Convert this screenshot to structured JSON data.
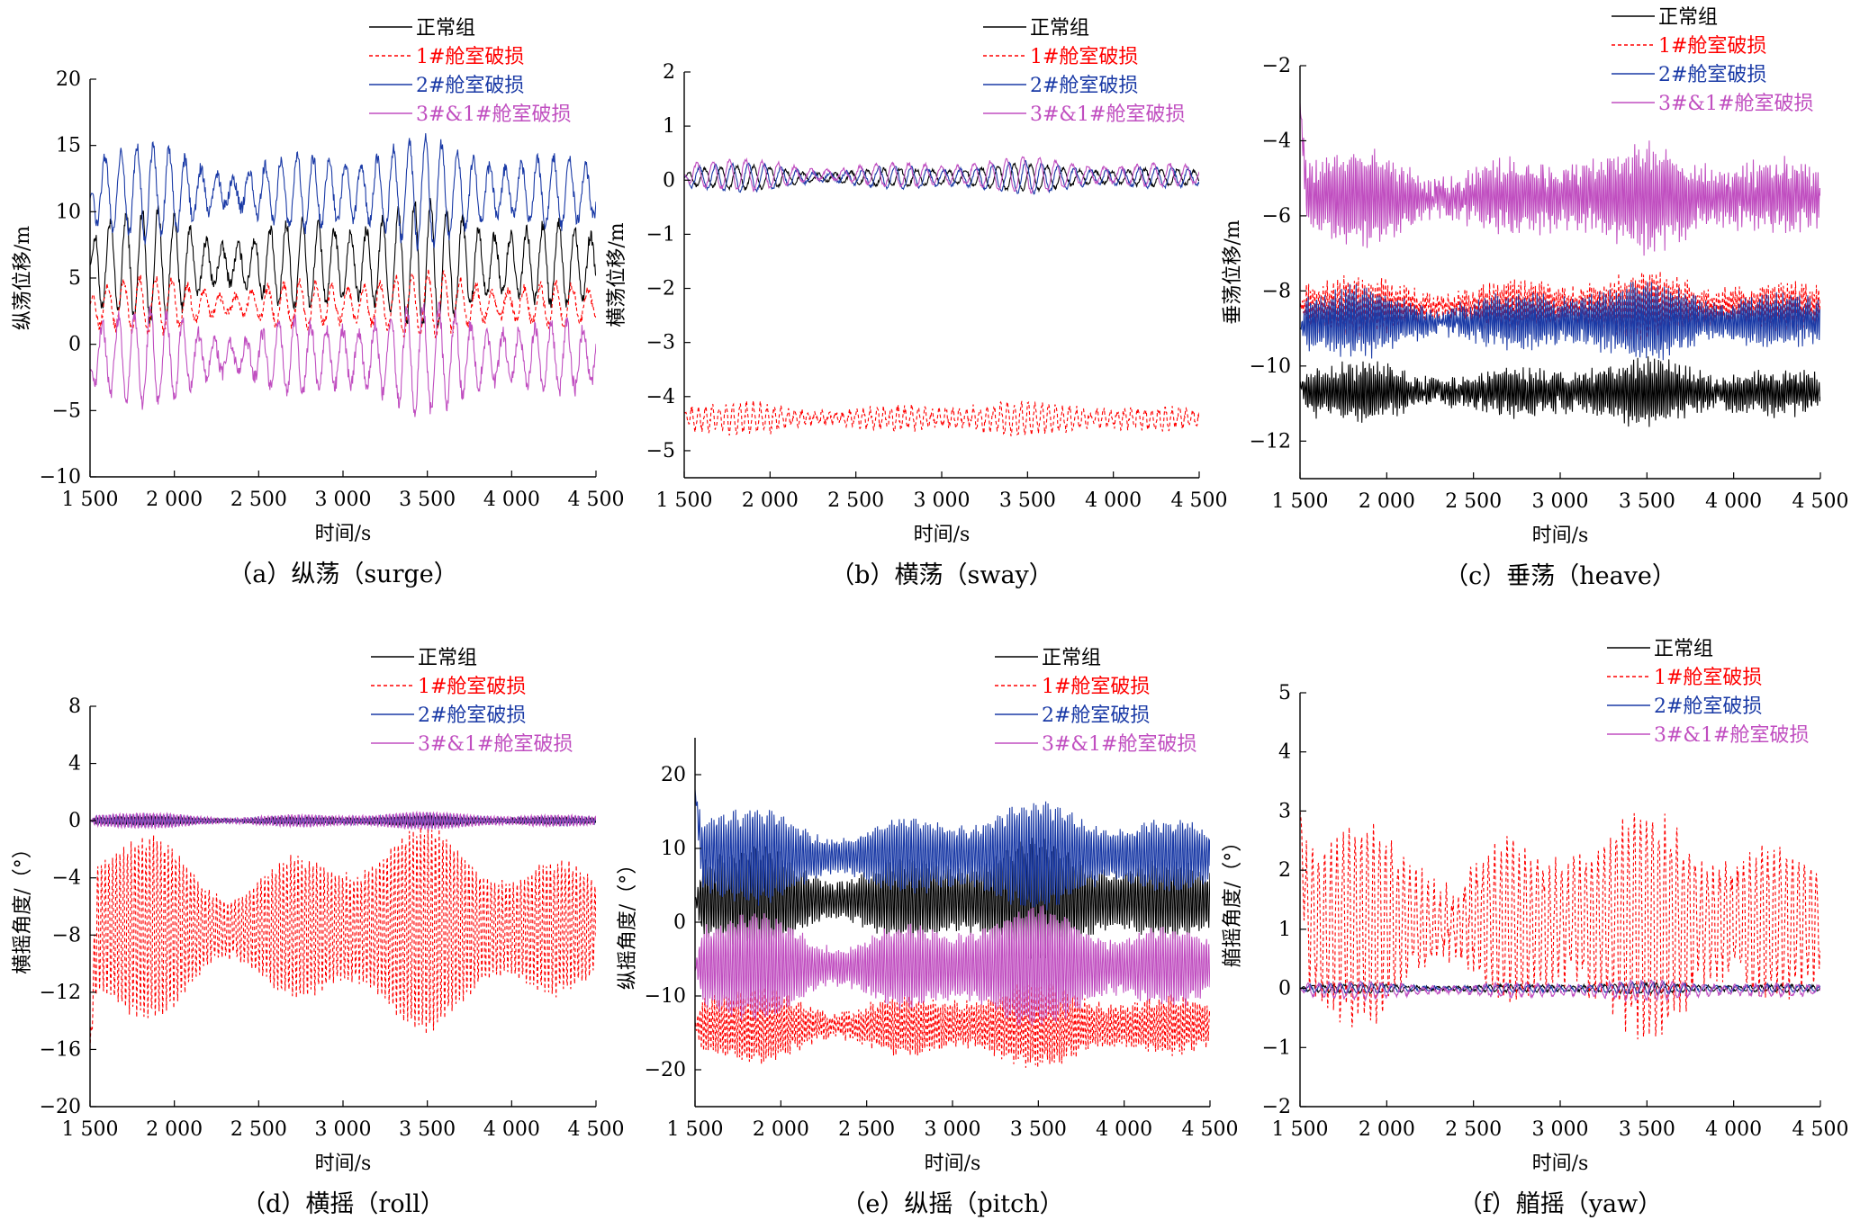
{
  "legend": [
    {
      "name": "正常组",
      "color": "#000000",
      "label_color": "#000000",
      "dash": ""
    },
    {
      "name": "1#舱室破损",
      "color": "#ff0000",
      "label_color": "#ff0000",
      "dash": "4,3"
    },
    {
      "name": "2#舱室破损",
      "color": "#1a3aa6",
      "label_color": "#1a3aa6",
      "dash": ""
    },
    {
      "name": "3#&1#舱室破损",
      "color": "#c04ec0",
      "label_color": "#c04ec0",
      "dash": ""
    }
  ],
  "xlabel": "时间/s",
  "chart_data": [
    {
      "type": "line",
      "caption": "（a）纵荡（surge）",
      "ylabel": "纵荡位移/m",
      "xlim": [
        1500,
        4500
      ],
      "ylim": [
        -10,
        20
      ],
      "xticks": [
        1500,
        2000,
        2500,
        3000,
        3500,
        4000,
        4500
      ],
      "xtick_labels": [
        "1 500",
        "2 000",
        "2 500",
        "3 000",
        "3 500",
        "4 000",
        "4 500"
      ],
      "yticks": [
        -10,
        -5,
        0,
        5,
        10,
        15,
        20
      ],
      "ytick_labels": [
        "−10",
        "−5",
        "0",
        "5",
        "10",
        "15",
        "20"
      ],
      "series": [
        {
          "name": "正常组",
          "mean": 6,
          "amp": 3,
          "period": 95,
          "noise": 0.5,
          "start": 6,
          "start_decay": 0
        },
        {
          "name": "1#舱室破损",
          "mean": 3,
          "amp": 1.5,
          "period": 95,
          "noise": 0.4,
          "start": 3,
          "start_decay": 0
        },
        {
          "name": "2#舱室破损",
          "mean": 11.5,
          "amp": 2.5,
          "period": 95,
          "noise": 0.5,
          "start": 11,
          "start_decay": 0
        },
        {
          "name": "3#&1#舱室破损",
          "mean": -1,
          "amp": 2.5,
          "period": 95,
          "noise": 0.6,
          "start": -2,
          "start_decay": 0
        }
      ]
    },
    {
      "type": "line",
      "caption": "（b）横荡（sway）",
      "ylabel": "横荡位移/m",
      "xlim": [
        1500,
        4500
      ],
      "ylim": [
        -5.5,
        2
      ],
      "xticks": [
        1500,
        2000,
        2500,
        3000,
        3500,
        4000,
        4500
      ],
      "xtick_labels": [
        "1 500",
        "2 000",
        "2 500",
        "3 000",
        "3 500",
        "4 000",
        "4 500"
      ],
      "yticks": [
        -5,
        -4,
        -3,
        -2,
        -1,
        0,
        1,
        2
      ],
      "ytick_labels": [
        "−5",
        "−4",
        "−3",
        "−2",
        "−1",
        "0",
        "1",
        "2"
      ],
      "series": [
        {
          "name": "正常组",
          "mean": 0.05,
          "amp": 0.15,
          "period": 95,
          "noise": 0.03,
          "start": 0.05,
          "start_decay": 0
        },
        {
          "name": "1#舱室破损",
          "mean": -4.4,
          "amp": 0.18,
          "period": 40,
          "noise": 0.08,
          "start": -4.3,
          "start_decay": 0
        },
        {
          "name": "2#舱室破损",
          "mean": 0.05,
          "amp": 0.18,
          "period": 95,
          "noise": 0.03,
          "start": 0.05,
          "start_decay": 0
        },
        {
          "name": "3#&1#舱室破损",
          "mean": 0.1,
          "amp": 0.2,
          "period": 95,
          "noise": 0.03,
          "start": 0.1,
          "start_decay": 0
        }
      ]
    },
    {
      "type": "line",
      "caption": "（c）垂荡（heave）",
      "ylabel": "垂荡位移/m",
      "xlim": [
        1500,
        4500
      ],
      "ylim": [
        -13,
        -2
      ],
      "xticks": [
        1500,
        2000,
        2500,
        3000,
        3500,
        4000,
        4500
      ],
      "xtick_labels": [
        "1 500",
        "2 000",
        "2 500",
        "3 000",
        "3 500",
        "4 000",
        "4 500"
      ],
      "yticks": [
        -12,
        -10,
        -8,
        -6,
        -4,
        -2
      ],
      "ytick_labels": [
        "−12",
        "−10",
        "−8",
        "−6",
        "−4",
        "−2"
      ],
      "series": [
        {
          "name": "正常组",
          "mean": -10.7,
          "amp": 0.5,
          "period": 12,
          "noise": 0.2,
          "start": -10.5,
          "start_decay": 0
        },
        {
          "name": "1#舱室破损",
          "mean": -8.4,
          "amp": 0.5,
          "period": 12,
          "noise": 0.2,
          "start": -8.4,
          "start_decay": 0
        },
        {
          "name": "2#舱室破损",
          "mean": -8.8,
          "amp": 0.6,
          "period": 12,
          "noise": 0.2,
          "start": -9,
          "start_decay": 0
        },
        {
          "name": "3#&1#舱室破损",
          "mean": -5.5,
          "amp": 0.8,
          "period": 12,
          "noise": 0.3,
          "start": -3,
          "start_decay": 0
        }
      ]
    },
    {
      "type": "line",
      "caption": "（d）横摇（roll）",
      "ylabel": "横摇角度/（°）",
      "xlim": [
        1500,
        4500
      ],
      "ylim": [
        -20,
        8
      ],
      "xticks": [
        1500,
        2000,
        2500,
        3000,
        3500,
        4000,
        4500
      ],
      "xtick_labels": [
        "1 500",
        "2 000",
        "2 500",
        "3 000",
        "3 500",
        "4 000",
        "4 500"
      ],
      "yticks": [
        -20,
        -16,
        -12,
        -8,
        -4,
        0,
        4,
        8
      ],
      "ytick_labels": [
        "−20",
        "−16",
        "−12",
        "−8",
        "−4",
        "0",
        "4",
        "8"
      ],
      "series": [
        {
          "name": "正常组",
          "mean": 0,
          "amp": 0.2,
          "period": 20,
          "noise": 0.05,
          "start": 0,
          "start_decay": 0
        },
        {
          "name": "1#舱室破损",
          "mean": -7.5,
          "amp": 4.5,
          "period": 22,
          "noise": 0.3,
          "start": -16,
          "start_decay": 0
        },
        {
          "name": "2#舱室破损",
          "mean": 0,
          "amp": 0.3,
          "period": 20,
          "noise": 0.05,
          "start": 0,
          "start_decay": 0
        },
        {
          "name": "3#&1#舱室破损",
          "mean": 0,
          "amp": 0.4,
          "period": 20,
          "noise": 0.05,
          "start": 0,
          "start_decay": 0
        }
      ]
    },
    {
      "type": "line",
      "caption": "（e）纵摇（pitch）",
      "ylabel": "纵摇角度/（°）",
      "xlim": [
        1500,
        4500
      ],
      "ylim": [
        -25,
        25
      ],
      "xticks": [
        1500,
        2000,
        2500,
        3000,
        3500,
        4000,
        4500
      ],
      "xtick_labels": [
        "1 500",
        "2 000",
        "2 500",
        "3 000",
        "3 500",
        "4 000",
        "4 500"
      ],
      "yticks": [
        -20,
        -10,
        0,
        10,
        20
      ],
      "ytick_labels": [
        "−20",
        "−10",
        "0",
        "10",
        "20"
      ],
      "series": [
        {
          "name": "正常组",
          "mean": 3,
          "amp": 5,
          "period": 14,
          "noise": 0.6,
          "start": 3,
          "start_decay": 0
        },
        {
          "name": "1#舱室破损",
          "mean": -14,
          "amp": 3.5,
          "period": 14,
          "noise": 0.6,
          "start": -14,
          "start_decay": 0
        },
        {
          "name": "2#舱室破损",
          "mean": 9,
          "amp": 4.5,
          "period": 14,
          "noise": 0.6,
          "start": 18,
          "start_decay": 0
        },
        {
          "name": "3#&1#舱室破损",
          "mean": -6,
          "amp": 5,
          "period": 14,
          "noise": 0.6,
          "start": -6,
          "start_decay": 0
        }
      ]
    },
    {
      "type": "line",
      "caption": "（f）艏摇（yaw）",
      "ylabel": "艏摇角度/（°）",
      "xlim": [
        1500,
        4500
      ],
      "ylim": [
        -2,
        5
      ],
      "xticks": [
        1500,
        2000,
        2500,
        3000,
        3500,
        4000,
        4500
      ],
      "xtick_labels": [
        "1 500",
        "2 000",
        "2 500",
        "3 000",
        "3 500",
        "4 000",
        "4 500"
      ],
      "yticks": [
        -2,
        -1,
        0,
        1,
        2,
        3,
        4,
        5
      ],
      "ytick_labels": [
        "−2",
        "−1",
        "0",
        "1",
        "2",
        "3",
        "4",
        "5"
      ],
      "series": [
        {
          "name": "正常组",
          "mean": 0,
          "amp": 0.05,
          "period": 60,
          "noise": 0.02,
          "start": 0,
          "start_decay": 0
        },
        {
          "name": "1#舱室破损",
          "mean": 1.1,
          "amp": 1.1,
          "period": 35,
          "noise": 0.3,
          "start": 3,
          "start_decay": 0
        },
        {
          "name": "2#舱室破损",
          "mean": 0,
          "amp": 0.06,
          "period": 60,
          "noise": 0.02,
          "start": 0,
          "start_decay": 0
        },
        {
          "name": "3#&1#舱室破损",
          "mean": -0.03,
          "amp": 0.1,
          "period": 60,
          "noise": 0.03,
          "start": 0,
          "start_decay": 0
        }
      ]
    }
  ]
}
